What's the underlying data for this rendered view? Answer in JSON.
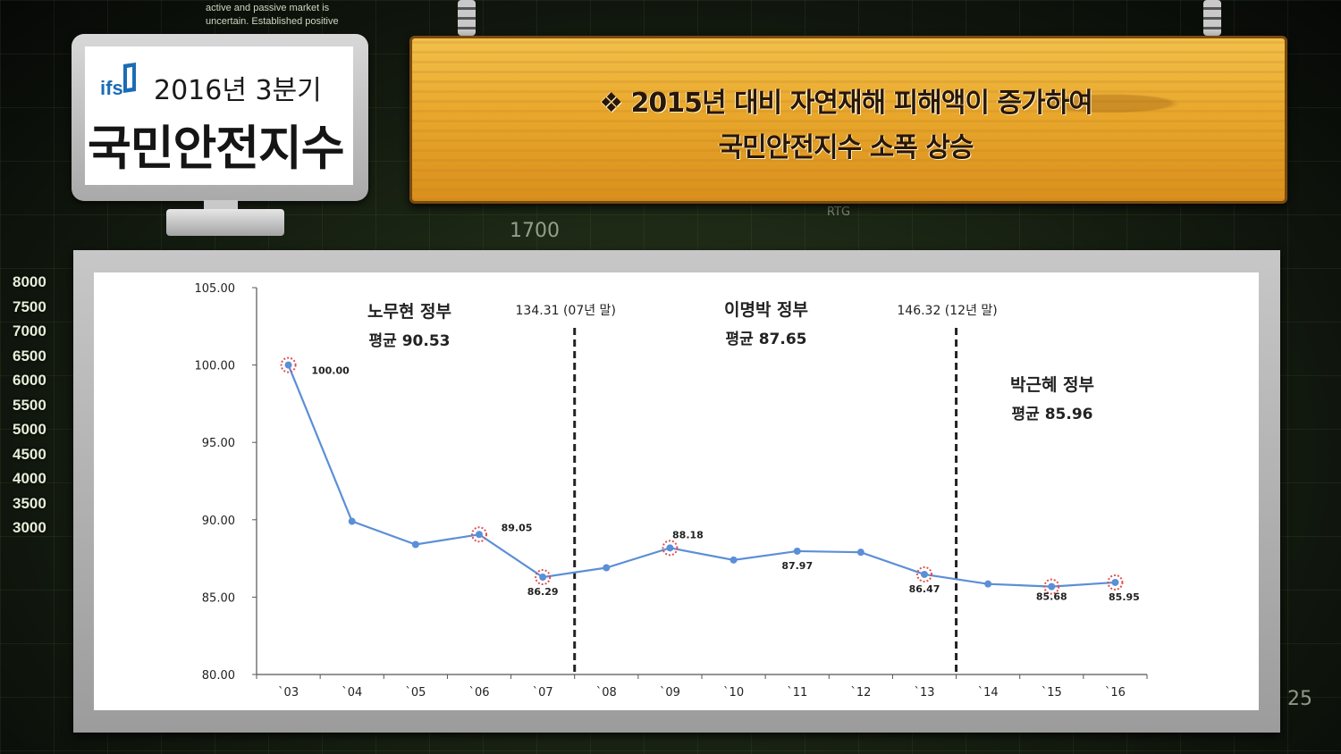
{
  "background": {
    "blurb_lines": [
      "active and passive market is",
      "uncertain. Established positive"
    ],
    "axis_numbers": [
      "8000",
      "7500",
      "7000",
      "6500",
      "6000",
      "5500",
      "5000",
      "4500",
      "4000",
      "3500",
      "3000"
    ],
    "deco_1700": "1700",
    "deco_rtg": "RTG",
    "deco_25": "25"
  },
  "monitor": {
    "logo": "ifs",
    "quarter": "2016년 3분기",
    "title": "국민안전지수"
  },
  "sign": {
    "line1": "❖ 2015년 대비 자연재해 피해액이 증가하여",
    "line2": "국민안전지수 소폭 상승"
  },
  "colors": {
    "line": "#5b8fd6",
    "marker_highlight": "#e05050",
    "sign_wood": "#eab030"
  },
  "chart_data": {
    "type": "line",
    "categories": [
      "`03",
      "`04",
      "`05",
      "`06",
      "`07",
      "`08",
      "`09",
      "`10",
      "`11",
      "`12",
      "`13",
      "`14",
      "`15",
      "`16"
    ],
    "series": [
      {
        "values": [
          100.0,
          89.9,
          88.4,
          89.05,
          86.29,
          86.9,
          88.18,
          87.4,
          87.97,
          87.9,
          86.47,
          85.85,
          85.68,
          85.95
        ]
      }
    ],
    "y_ticks": [
      "105.00",
      "100.00",
      "95.00",
      "90.00",
      "85.00",
      "80.00"
    ],
    "ylim": [
      80,
      105
    ],
    "grid": false,
    "data_labels": [
      {
        "index": 0,
        "text": "100.00"
      },
      {
        "index": 3,
        "text": "89.05"
      },
      {
        "index": 4,
        "text": "86.29"
      },
      {
        "index": 6,
        "text": "88.18"
      },
      {
        "index": 8,
        "text": "87.97"
      },
      {
        "index": 10,
        "text": "86.47"
      },
      {
        "index": 12,
        "text": "85.68"
      },
      {
        "index": 13,
        "text": "85.95"
      }
    ],
    "highlighted_indices": [
      0,
      3,
      4,
      6,
      10,
      12,
      13
    ],
    "dividers": [
      {
        "between": [
          4,
          5
        ],
        "label": "134.31 (07년 말)"
      },
      {
        "between": [
          10,
          11
        ],
        "label": "146.32 (12년 말)"
      }
    ],
    "annotations": [
      {
        "name": "노무현 정부",
        "average": "평균 90.53"
      },
      {
        "name": "이명박 정부",
        "average": "평균 87.65"
      },
      {
        "name": "박근혜 정부",
        "average": "평균 85.96"
      }
    ]
  }
}
